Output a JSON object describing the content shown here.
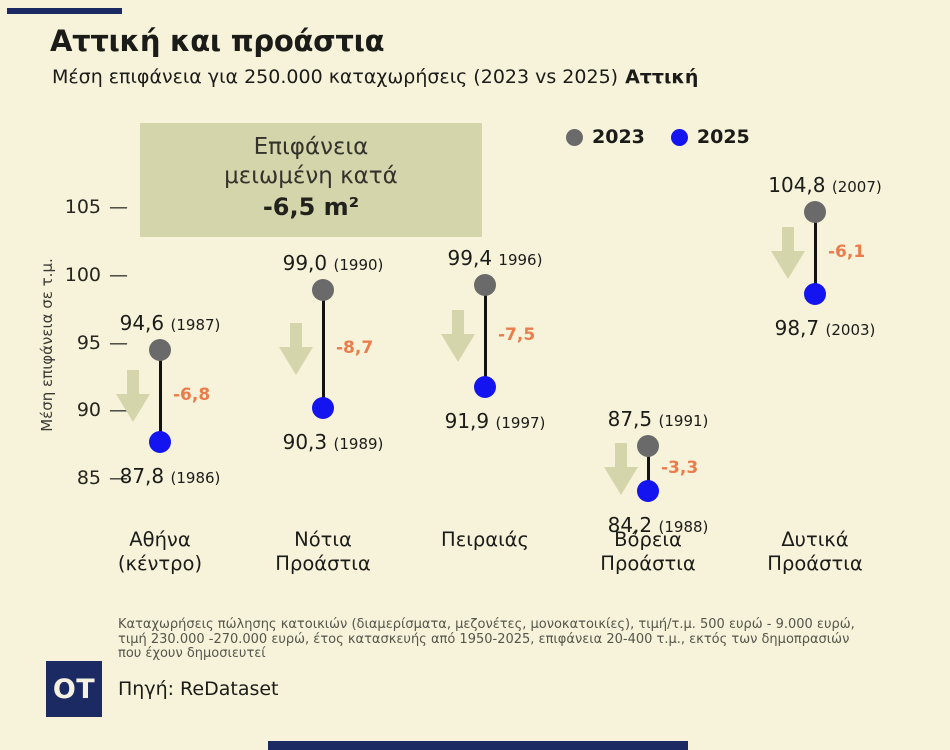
{
  "theme": {
    "background": "#F7F3DB",
    "navy": "#1B2A63",
    "sage": "#D5D5AB",
    "orange": "#EB7C4C",
    "gray_2023": "#6A6A6A",
    "blue_2025": "#1414F0",
    "text_dark": "#1B1B18",
    "text_muted": "#55554B"
  },
  "header": {
    "title": "Αττική και προάστια",
    "subtitle": "Μέση επιφάνεια για 250.000 καταχωρήσεις (2023 vs 2025)",
    "subtitle_bold": "Αττική"
  },
  "annotation": {
    "line1": "Επιφάνεια",
    "line2": "μειωμένη κατά",
    "line3": "-6,5 m²"
  },
  "legend": [
    {
      "label": "2023",
      "color": "#6A6A6A"
    },
    {
      "label": "2025",
      "color": "#1414F0"
    }
  ],
  "chart_data": {
    "type": "dumbbell",
    "title": "Αττική και προάστια",
    "subtitle": "Μέση επιφάνεια για 250.000 καταχωρήσεις (2023 vs 2025) Αττική",
    "ylabel": "Μέση επιφάνεια σε τ.μ.",
    "yticks": [
      105,
      100,
      95,
      90,
      85
    ],
    "ylim": [
      83,
      107
    ],
    "grid": false,
    "legend_position": "top-right",
    "categories": [
      "Αθήνα (κέντρο)",
      "Νότια Προάστια",
      "Πειραιάς",
      "Βόρεια Προάστια",
      "Δυτικά Προάστια"
    ],
    "series": [
      {
        "name": "2023",
        "values": [
          94.6,
          99.0,
          99.4,
          87.5,
          104.8
        ]
      },
      {
        "name": "2025",
        "values": [
          87.8,
          90.3,
          91.9,
          84.2,
          98.7
        ]
      }
    ],
    "points": [
      {
        "category_lines": [
          "Αθήνα",
          "(κέντρο)"
        ],
        "value_2023": 94.6,
        "label_2023": "94,6",
        "year_2023": "(1987)",
        "value_2025": 87.8,
        "label_2025": "87,8",
        "year_2025": "(1986)",
        "change": "-6,8"
      },
      {
        "category_lines": [
          "Νότια",
          "Προάστια"
        ],
        "value_2023": 99.0,
        "label_2023": "99,0",
        "year_2023": "(1990)",
        "value_2025": 90.3,
        "label_2025": "90,3",
        "year_2025": "(1989)",
        "change": "-8,7"
      },
      {
        "category_lines": [
          "Πειραιάς"
        ],
        "value_2023": 99.4,
        "label_2023": "99,4",
        "year_2023": "1996)",
        "value_2025": 91.9,
        "label_2025": "91,9",
        "year_2025": "(1997)",
        "change": "-7,5"
      },
      {
        "category_lines": [
          "Βόρεια",
          "Προάστια"
        ],
        "value_2023": 87.5,
        "label_2023": "87,5",
        "year_2023": "(1991)",
        "value_2025": 84.2,
        "label_2025": "84,2",
        "year_2025": "(1988)",
        "change": "-3,3"
      },
      {
        "category_lines": [
          "Δυτικά",
          "Προάστια"
        ],
        "value_2023": 104.8,
        "label_2023": "104,8",
        "year_2023": "(2007)",
        "value_2025": 98.7,
        "label_2025": "98,7",
        "year_2025": "(2003)",
        "change": "-6,1"
      }
    ]
  },
  "footer": {
    "note_lines": [
      "Καταχωρήσεις πώλησης κατοικιών (διαμερίσματα, μεζονέτες, μονοκατοικίες), τιμή/τ.μ.  500 ευρώ - 9.000 ευρώ,",
      "τιμή 230.000 -270.000 ευρώ, έτος κατασκευής από 1950-2025, επιφάνεια 20-400 τ.μ., εκτός των δημοπρασιών",
      "που έχουν δημοσιευτεί"
    ],
    "logo": "OT",
    "source": "Πηγή: ReDataset"
  }
}
